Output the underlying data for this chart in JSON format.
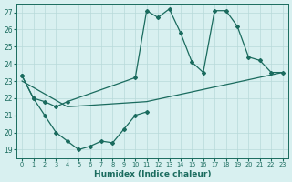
{
  "line1_x": [
    0,
    1,
    2,
    3,
    4,
    5,
    6,
    7,
    8,
    9,
    10,
    11
  ],
  "line1_y": [
    23.3,
    22.0,
    21.0,
    20.0,
    19.5,
    19.0,
    19.2,
    19.5,
    19.4,
    20.2,
    21.0,
    21.2
  ],
  "line2_x": [
    0,
    1,
    2,
    3,
    4,
    10,
    11,
    12,
    13,
    14,
    15,
    16,
    17,
    18,
    19,
    20,
    21,
    22,
    23
  ],
  "line2_y": [
    23.3,
    22.0,
    21.8,
    21.5,
    21.8,
    23.2,
    27.1,
    26.7,
    27.2,
    25.8,
    24.1,
    23.5,
    27.1,
    27.1,
    26.2,
    24.4,
    24.2,
    23.5,
    23.5
  ],
  "line3_x": [
    0,
    4,
    11,
    23
  ],
  "line3_y": [
    23.0,
    21.5,
    21.8,
    23.5
  ],
  "line_color": "#1a6b5e",
  "bg_color": "#d8f0f0",
  "grid_color": "#b8dada",
  "xlabel": "Humidex (Indice chaleur)",
  "ylim": [
    18.5,
    27.5
  ],
  "xlim": [
    -0.5,
    23.5
  ],
  "yticks": [
    19,
    20,
    21,
    22,
    23,
    24,
    25,
    26,
    27
  ],
  "xticks": [
    0,
    1,
    2,
    3,
    4,
    5,
    6,
    7,
    8,
    9,
    10,
    11,
    12,
    13,
    14,
    15,
    16,
    17,
    18,
    19,
    20,
    21,
    22,
    23
  ]
}
